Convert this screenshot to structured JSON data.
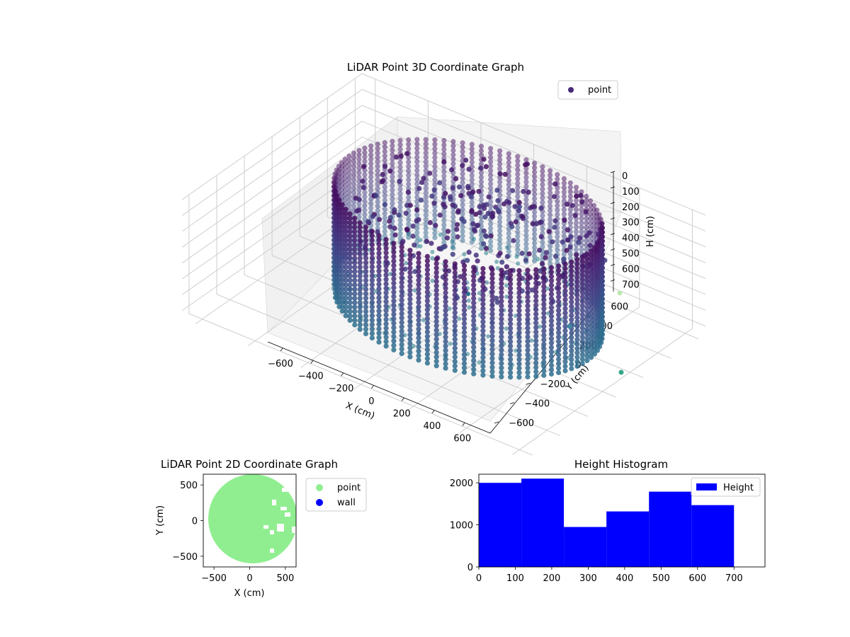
{
  "chart_data": [
    {
      "type": "scatter3d",
      "title": "LiDAR Point 3D Coordinate Graph",
      "xlabel": "X (cm)",
      "ylabel": "Y (cm)",
      "zlabel": "H (cm)",
      "xlim": [
        -650,
        650
      ],
      "ylim": [
        -650,
        650
      ],
      "zlim": [
        0,
        750
      ],
      "z_inverted": true,
      "x_ticks": [
        "−600",
        "−400",
        "−200",
        "0",
        "200",
        "400",
        "600"
      ],
      "y_ticks": [
        "−600",
        "−400",
        "−200",
        "0",
        "200",
        "400",
        "600"
      ],
      "z_ticks": [
        "0",
        "100",
        "200",
        "300",
        "400",
        "500",
        "600",
        "700"
      ],
      "legend": [
        {
          "label": "point",
          "color": "#482878"
        }
      ],
      "legend_position": "top-right",
      "colormap": "viridis",
      "point_cloud": {
        "shape": "cylindrical wall with floor and central clutter",
        "wall_radius": 450,
        "center": [
          50,
          80
        ],
        "height_range": [
          0,
          700
        ]
      },
      "grid": true
    },
    {
      "type": "scatter",
      "title": "LiDAR Point 2D Coordinate Graph",
      "xlabel": "X (cm)",
      "ylabel": "Y (cm)",
      "xlim": [
        -650,
        650
      ],
      "ylim": [
        -650,
        650
      ],
      "x_ticks": [
        "−500",
        "0",
        "500"
      ],
      "y_ticks": [
        "−500",
        "0",
        "500"
      ],
      "series": [
        {
          "name": "point",
          "color": "#90ee90",
          "region": {
            "center": [
              40,
              20
            ],
            "radius": 600
          }
        },
        {
          "name": "wall",
          "color": "#0000ff",
          "region": null
        }
      ],
      "legend_position": "outside-right",
      "grid": false
    },
    {
      "type": "bar",
      "title": "Height Histogram",
      "xlabel": "",
      "ylabel": "",
      "bin_edges": [
        0,
        116.7,
        233.3,
        350,
        466.7,
        583.3,
        700
      ],
      "values": [
        2000,
        2100,
        950,
        1320,
        1790,
        1470
      ],
      "xlim": [
        0,
        785
      ],
      "ylim": [
        0,
        2205
      ],
      "x_ticks": [
        "0",
        "100",
        "200",
        "300",
        "400",
        "500",
        "600",
        "700"
      ],
      "y_ticks": [
        "0",
        "1000",
        "2000"
      ],
      "series": [
        {
          "name": "Height",
          "color": "#0000ff"
        }
      ],
      "legend_position": "top-right",
      "grid": false
    }
  ]
}
